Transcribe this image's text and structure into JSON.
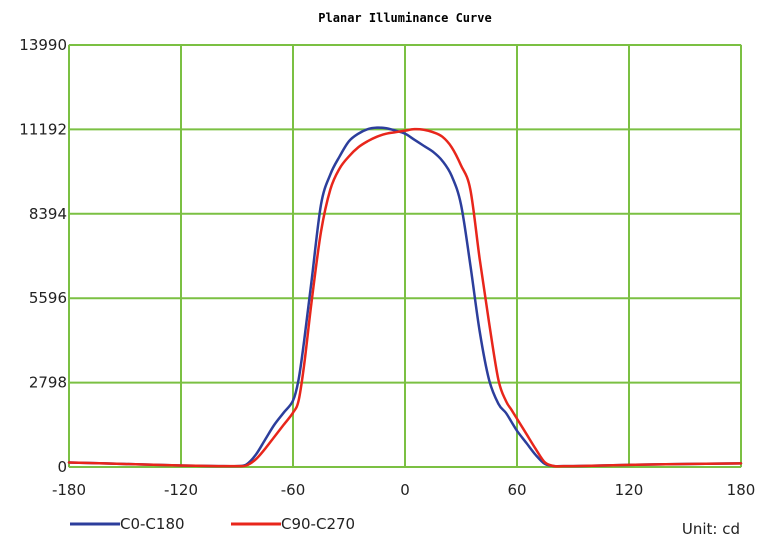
{
  "chart_data": {
    "type": "line",
    "title": "Planar Illuminance Curve",
    "unit_label": "Unit: cd",
    "xlabel": "",
    "ylabel": "",
    "xlim": [
      -180,
      180
    ],
    "ylim": [
      0,
      13990
    ],
    "x_ticks": [
      "-180",
      "-120",
      "-60",
      "0",
      "60",
      "120",
      "180"
    ],
    "y_ticks": [
      "0",
      "2798",
      "5596",
      "8394",
      "11192",
      "13990"
    ],
    "x_tick_values": [
      -180,
      -120,
      -60,
      0,
      60,
      120,
      180
    ],
    "y_tick_values": [
      0,
      2798,
      5596,
      8394,
      11192,
      13990
    ],
    "grid": true,
    "legend_position": "bottom-left",
    "series": [
      {
        "name": "C0-C180",
        "color": "#2c3e9c",
        "x": [
          -180,
          -150,
          -120,
          -100,
          -90,
          -85,
          -80,
          -75,
          -70,
          -65,
          -60,
          -57,
          -54,
          -50,
          -45,
          -40,
          -35,
          -30,
          -25,
          -20,
          -15,
          -10,
          -5,
          0,
          5,
          10,
          15,
          20,
          25,
          30,
          35,
          40,
          45,
          50,
          54,
          57,
          60,
          65,
          70,
          75,
          80,
          85,
          90,
          100,
          120,
          150,
          180
        ],
        "y": [
          150,
          100,
          50,
          30,
          30,
          80,
          400,
          900,
          1400,
          1800,
          2200,
          2900,
          4200,
          6200,
          8700,
          9700,
          10300,
          10800,
          11050,
          11200,
          11250,
          11230,
          11150,
          11050,
          10850,
          10650,
          10450,
          10150,
          9650,
          8700,
          6700,
          4500,
          2900,
          2100,
          1800,
          1500,
          1200,
          800,
          400,
          100,
          30,
          30,
          30,
          40,
          70,
          100,
          120
        ]
      },
      {
        "name": "C90-C270",
        "color": "#e8261b",
        "x": [
          -180,
          -150,
          -120,
          -100,
          -90,
          -85,
          -80,
          -75,
          -70,
          -65,
          -60,
          -57,
          -54,
          -50,
          -45,
          -40,
          -35,
          -30,
          -25,
          -20,
          -15,
          -10,
          -5,
          0,
          5,
          10,
          15,
          20,
          25,
          30,
          35,
          40,
          45,
          50,
          54,
          57,
          60,
          65,
          70,
          75,
          80,
          85,
          90,
          100,
          120,
          150,
          180
        ],
        "y": [
          150,
          100,
          50,
          30,
          30,
          50,
          250,
          600,
          1000,
          1400,
          1800,
          2200,
          3400,
          5500,
          7800,
          9200,
          9900,
          10300,
          10600,
          10800,
          10950,
          11050,
          11100,
          11150,
          11200,
          11180,
          11100,
          10950,
          10600,
          10000,
          9200,
          6900,
          4800,
          2900,
          2200,
          1900,
          1600,
          1100,
          600,
          150,
          30,
          30,
          30,
          40,
          70,
          100,
          120
        ]
      }
    ]
  }
}
